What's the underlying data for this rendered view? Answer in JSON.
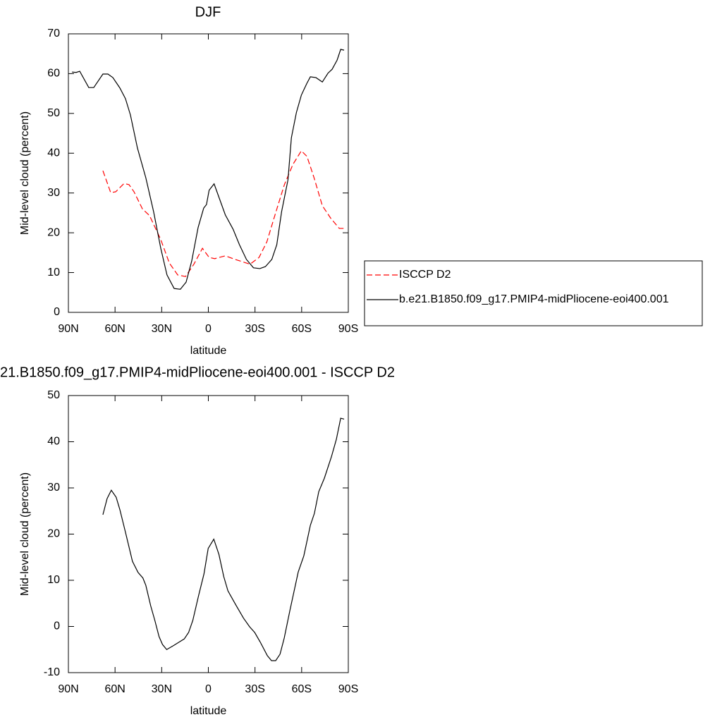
{
  "chart_data": [
    {
      "type": "line",
      "title": "DJF",
      "xlabel": "latitude",
      "ylabel": "Mid-level cloud (percent)",
      "xlim": [
        90,
        -90
      ],
      "xticks": [
        {
          "value": 90,
          "label": "90N"
        },
        {
          "value": 60,
          "label": "60N"
        },
        {
          "value": 30,
          "label": "30N"
        },
        0,
        {
          "value": -30,
          "label": "30S"
        },
        {
          "value": -60,
          "label": "60S"
        },
        {
          "value": -90,
          "label": "90S"
        }
      ],
      "ylim": [
        0,
        70
      ],
      "yticks": [
        0,
        10,
        20,
        30,
        40,
        50,
        60,
        70
      ],
      "legend": "right",
      "series": [
        {
          "name": "ISCCP D2",
          "color": "#ff0000",
          "dash": true,
          "x": [
            67.8,
            62.8,
            59.6,
            54.2,
            51,
            47.8,
            42.4,
            37.8,
            30.6,
            25.1,
            19.7,
            14.7,
            9.3,
            3.8,
            -0.5,
            -4.1,
            -10.9,
            -17.3,
            -26.8,
            -32.6,
            -37.6,
            -43.5,
            -48.9,
            -54.4,
            -59.8,
            -63.4,
            -68,
            -73.3,
            -78.8,
            -84.2,
            -87.3
          ],
          "values": [
            35.6,
            30.1,
            30.3,
            32.4,
            32.1,
            30.3,
            26,
            24.3,
            18.3,
            12.4,
            9.4,
            9,
            12.1,
            16.1,
            13.8,
            13.5,
            14.2,
            13.3,
            12.1,
            13.8,
            17.7,
            25.3,
            32.1,
            37.2,
            40.6,
            39.2,
            33.8,
            26.8,
            23.6,
            21.1,
            21.1
          ]
        },
        {
          "name": "b.e21.B1850.f09_g17.PMIP4-midPliocene-eoi400.001",
          "color": "#000000",
          "dash": false,
          "x": [
            87.7,
            85,
            82.7,
            76.9,
            73.7,
            67.8,
            64.6,
            61.4,
            56.9,
            53.3,
            50.1,
            45.6,
            40.2,
            35.2,
            30.6,
            26.6,
            22,
            18,
            14.3,
            10.7,
            6.6,
            3,
            1.2,
            -0.5,
            -3.7,
            -7.3,
            -10.9,
            -15.9,
            -20,
            -24.5,
            -29,
            -33.1,
            -36.7,
            -40.8,
            -44,
            -47.1,
            -51.2,
            -53.4,
            -56.6,
            -59.8,
            -63.4,
            -65.6,
            -69.2,
            -73.3,
            -76.9,
            -79.6,
            -82.8,
            -85.1,
            -87.3
          ],
          "values": [
            60.4,
            60.3,
            60.6,
            56.5,
            56.5,
            59.9,
            59.9,
            59,
            56.4,
            53.7,
            49.6,
            41.3,
            33.8,
            25.3,
            16.1,
            9.4,
            6,
            5.8,
            7.6,
            12.9,
            21.3,
            26.2,
            27.1,
            30.7,
            32.3,
            28.4,
            24.5,
            20.9,
            17,
            13.3,
            11.2,
            11,
            11.5,
            13.3,
            17,
            25.3,
            33.3,
            43.9,
            50.2,
            54.6,
            57.6,
            59.2,
            59,
            57.9,
            60.1,
            61.1,
            63.4,
            66.1,
            65.9
          ]
        }
      ]
    },
    {
      "type": "line",
      "title": "21.B1850.f09_g17.PMIP4-midPliocene-eoi400.001 - ISCCP D2",
      "xlabel": "latitude",
      "ylabel": "Mid-level cloud (percent)",
      "xlim": [
        90,
        -90
      ],
      "xticks": [
        {
          "value": 90,
          "label": "90N"
        },
        {
          "value": 60,
          "label": "60N"
        },
        {
          "value": 30,
          "label": "30N"
        },
        0,
        {
          "value": -30,
          "label": "30S"
        },
        {
          "value": -60,
          "label": "60S"
        },
        {
          "value": -90,
          "label": "90S"
        }
      ],
      "ylim": [
        -10,
        50
      ],
      "yticks": [
        -10,
        0,
        10,
        20,
        30,
        40,
        50
      ],
      "series": [
        {
          "color": "#000000",
          "dash": false,
          "x": [
            67.8,
            65.1,
            62.4,
            59.3,
            56.9,
            53.3,
            48.8,
            45.2,
            42.1,
            40.2,
            37.1,
            34.4,
            31.7,
            29.5,
            26.8,
            22.7,
            15.5,
            12.7,
            10,
            6.4,
            2.8,
            0.1,
            -3.5,
            -6.8,
            -9.9,
            -12.6,
            -17.6,
            -22.6,
            -26.6,
            -29.8,
            -33.4,
            -37.9,
            -40.6,
            -43.3,
            -46.1,
            -48.8,
            -52.4,
            -57.8,
            -61.4,
            -65.6,
            -68.2,
            -71,
            -74.6,
            -79.1,
            -82.3,
            -85.1,
            -87.3
          ],
          "values": [
            24.2,
            27.7,
            29.5,
            28,
            25.3,
            20.4,
            14.1,
            11.7,
            10.5,
            8.9,
            4.5,
            1.3,
            -2.2,
            -3.9,
            -5,
            -4.2,
            -2.7,
            -1.3,
            1.3,
            6.5,
            11.4,
            16.9,
            18.9,
            15.6,
            10.8,
            7.7,
            4.7,
            1.8,
            -0.1,
            -1.3,
            -3.4,
            -6.3,
            -7.4,
            -7.4,
            -6,
            -2.5,
            3.4,
            11.8,
            15.3,
            21.9,
            24.5,
            29.2,
            32.1,
            36.7,
            40.5,
            45.1,
            44.9
          ]
        }
      ]
    }
  ]
}
